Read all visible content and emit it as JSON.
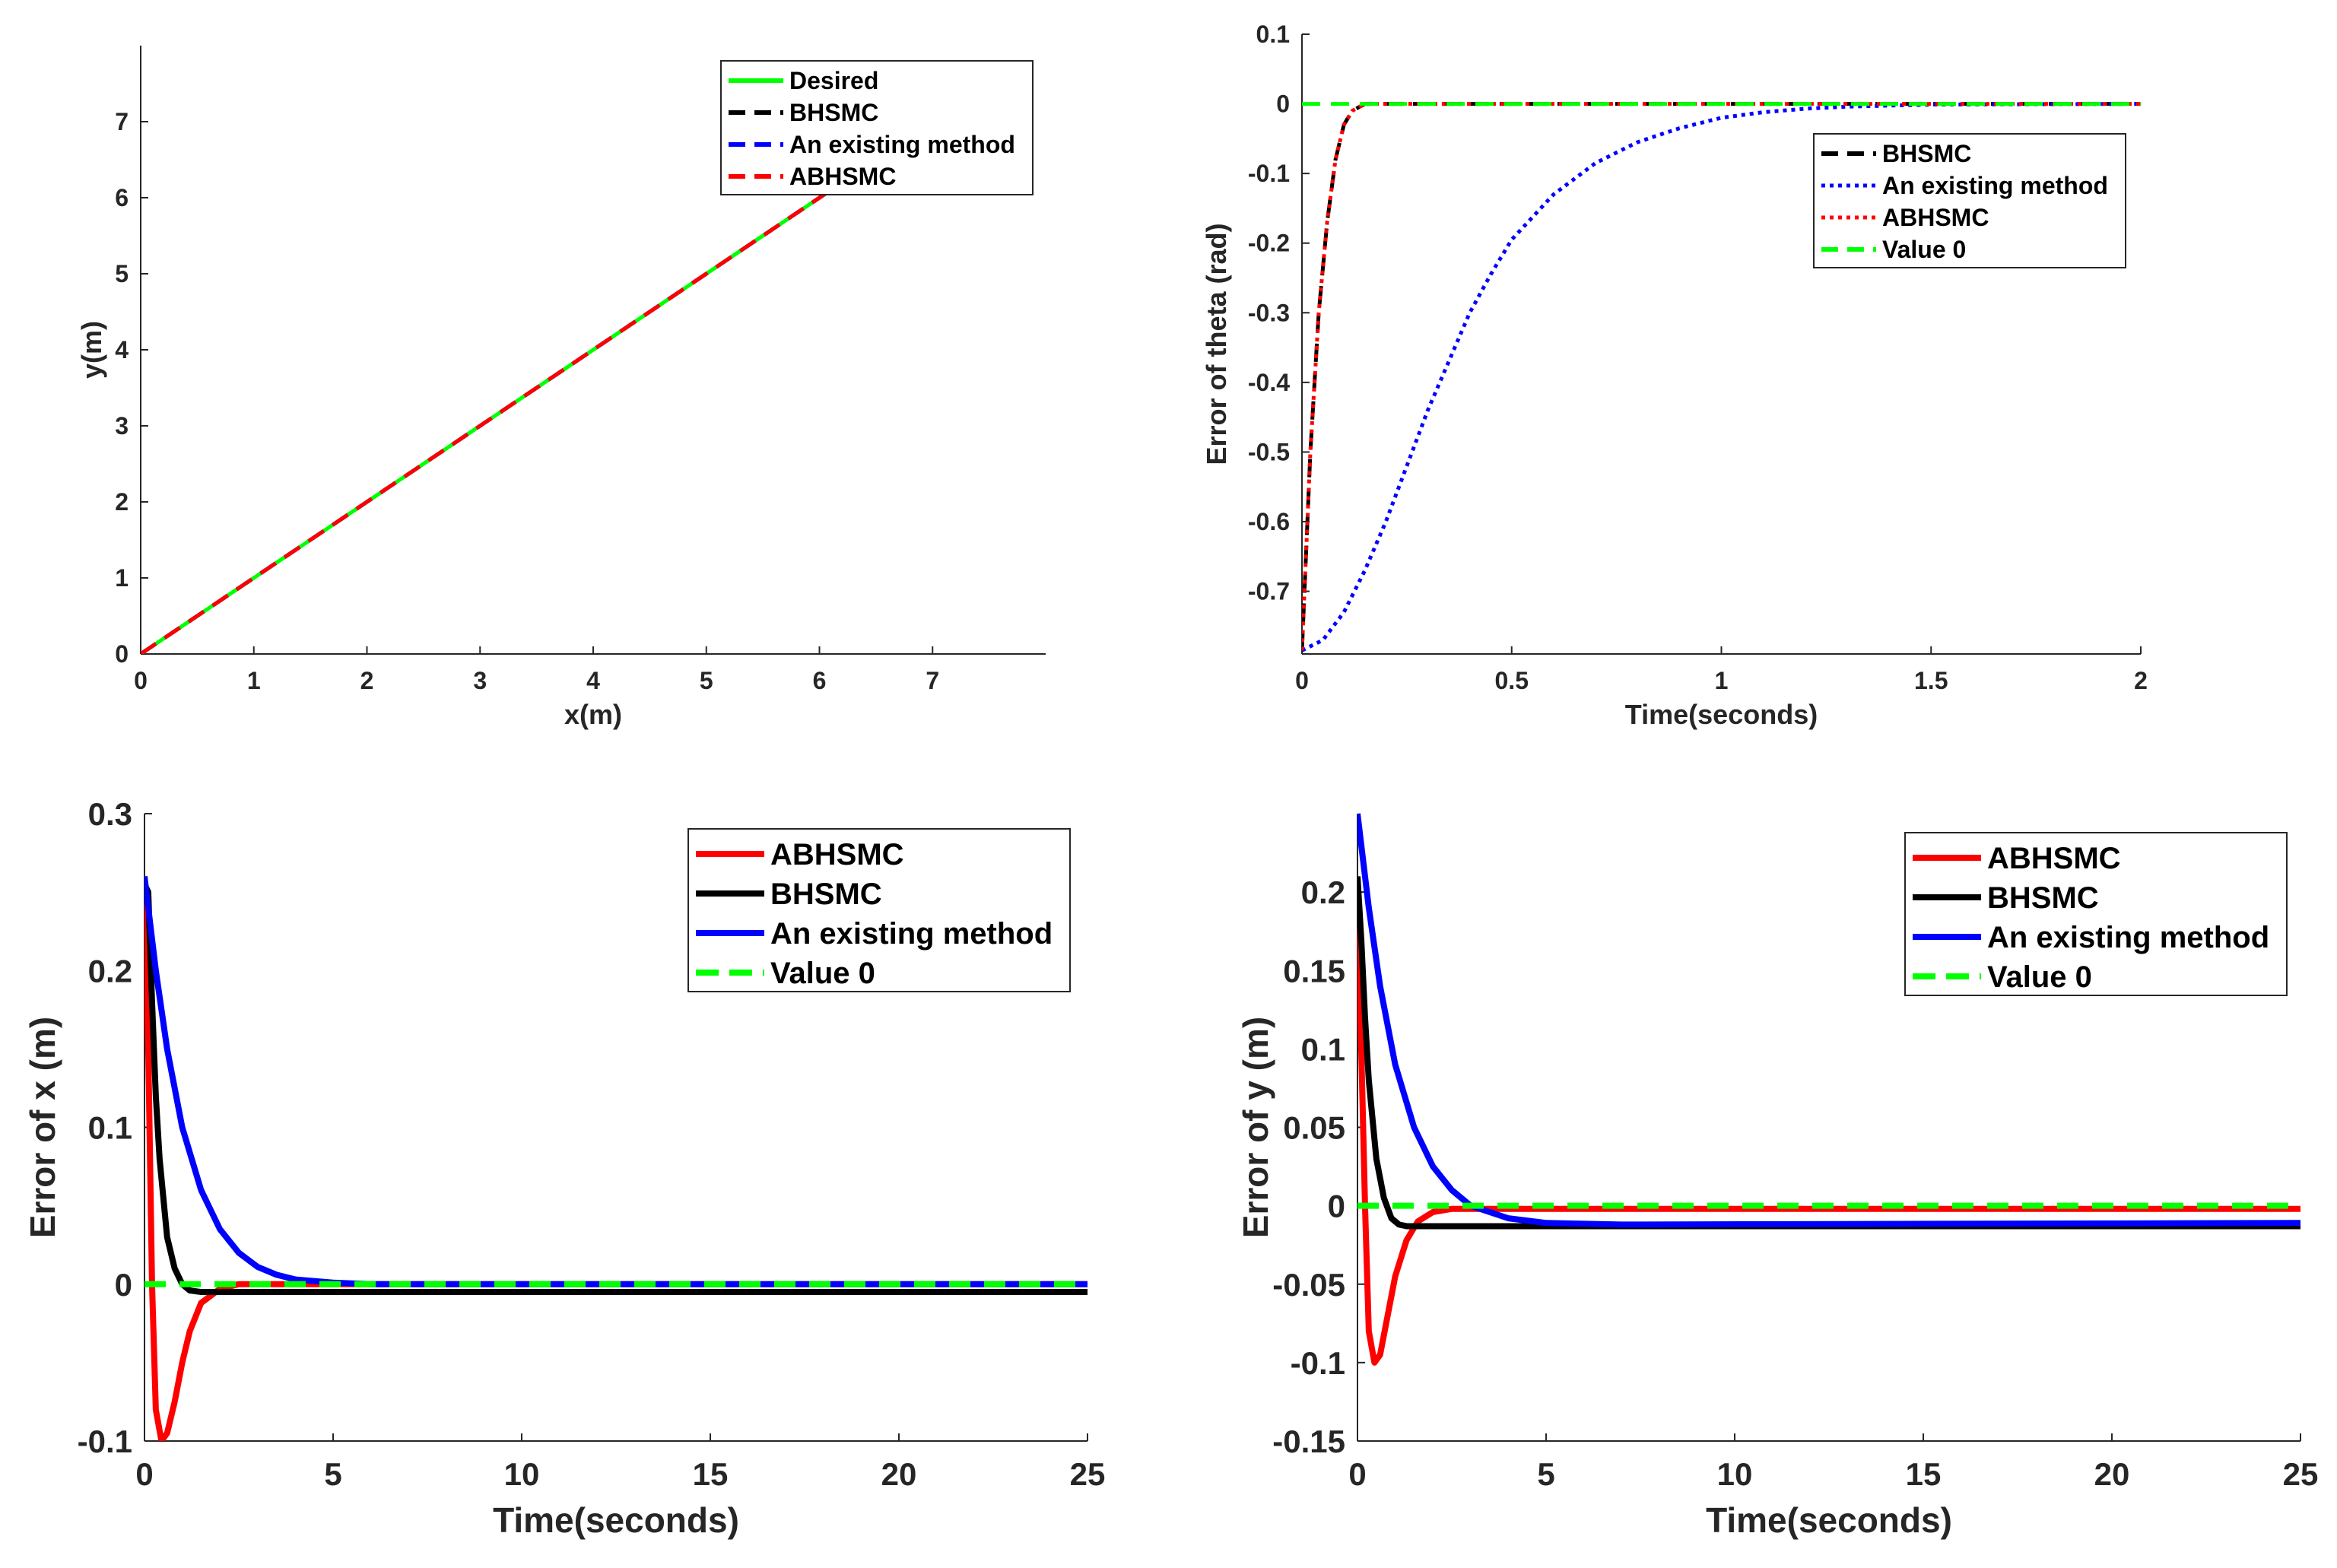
{
  "chart_data": [
    {
      "id": "traj",
      "type": "line",
      "xlabel": "x(m)",
      "ylabel": "y(m)",
      "xlim": [
        0,
        8
      ],
      "ylim": [
        0,
        8
      ],
      "xticks": [
        0,
        1,
        2,
        3,
        4,
        5,
        6,
        7
      ],
      "yticks": [
        0,
        1,
        2,
        3,
        4,
        5,
        6,
        7
      ],
      "legend_position": "top-right",
      "series": [
        {
          "name": "Desired",
          "color": "#00ff00",
          "style": "solid",
          "x": [
            0,
            6.3
          ],
          "y": [
            0,
            6.3
          ]
        },
        {
          "name": "BHSMC",
          "color": "#000000",
          "style": "dashed",
          "x": [
            0,
            6.3
          ],
          "y": [
            0,
            6.3
          ]
        },
        {
          "name": "An existing method",
          "color": "#0000ff",
          "style": "dashed",
          "x": [
            0,
            6.3
          ],
          "y": [
            0,
            6.3
          ]
        },
        {
          "name": "ABHSMC",
          "color": "#ff0000",
          "style": "dashed",
          "x": [
            0,
            6.3
          ],
          "y": [
            0,
            6.3
          ]
        }
      ]
    },
    {
      "id": "theta",
      "type": "line",
      "xlabel": "Time(seconds)",
      "ylabel": "Error of theta (rad)",
      "xlim": [
        0,
        2
      ],
      "ylim": [
        -0.79,
        0.1
      ],
      "xticks": [
        0,
        0.5,
        1,
        1.5,
        2
      ],
      "xtick_labels": [
        "0",
        "0.5",
        "1",
        "1.5",
        "2"
      ],
      "yticks": [
        0.1,
        0,
        -0.1,
        -0.2,
        -0.3,
        -0.4,
        -0.5,
        -0.6,
        -0.7
      ],
      "ytick_labels": [
        "0.1",
        "0",
        "-0.1",
        "-0.2",
        "-0.3",
        "-0.4",
        "-0.5",
        "-0.6",
        "-0.7"
      ],
      "legend_position": "top-right",
      "series": [
        {
          "name": "BHSMC",
          "color": "#000000",
          "style": "dashed",
          "x": [
            0,
            0.02,
            0.04,
            0.06,
            0.08,
            0.1,
            0.12,
            0.15,
            2
          ],
          "y": [
            -0.785,
            -0.5,
            -0.3,
            -0.17,
            -0.08,
            -0.03,
            -0.01,
            0,
            0
          ]
        },
        {
          "name": "An existing method",
          "color": "#0000ff",
          "style": "dotted",
          "x": [
            0,
            0.05,
            0.1,
            0.15,
            0.2,
            0.25,
            0.3,
            0.35,
            0.4,
            0.45,
            0.5,
            0.6,
            0.7,
            0.8,
            0.9,
            1.0,
            1.1,
            1.2,
            1.3,
            1.5,
            2
          ],
          "y": [
            -0.785,
            -0.77,
            -0.73,
            -0.67,
            -0.6,
            -0.52,
            -0.44,
            -0.37,
            -0.3,
            -0.245,
            -0.195,
            -0.13,
            -0.085,
            -0.055,
            -0.035,
            -0.02,
            -0.012,
            -0.007,
            -0.004,
            -0.001,
            0
          ]
        },
        {
          "name": "ABHSMC",
          "color": "#ff0000",
          "style": "dotted",
          "x": [
            0,
            0.02,
            0.04,
            0.06,
            0.08,
            0.1,
            0.12,
            0.15,
            2
          ],
          "y": [
            -0.785,
            -0.5,
            -0.3,
            -0.17,
            -0.08,
            -0.03,
            -0.01,
            0,
            0
          ]
        },
        {
          "name": "Value 0",
          "color": "#00ff00",
          "style": "dashed",
          "x": [
            0,
            2
          ],
          "y": [
            0,
            0
          ]
        }
      ]
    },
    {
      "id": "ex",
      "type": "line",
      "xlabel": "Time(seconds)",
      "ylabel": "Error of x (m)",
      "xlim": [
        0,
        25
      ],
      "ylim": [
        -0.1,
        0.3
      ],
      "xticks": [
        0,
        5,
        10,
        15,
        20,
        25
      ],
      "xtick_labels": [
        "0",
        "5",
        "10",
        "15",
        "20",
        "25"
      ],
      "yticks": [
        -0.1,
        0,
        0.1,
        0.2,
        0.3
      ],
      "ytick_labels": [
        "-0.1",
        "0",
        "0.1",
        "0.2",
        "0.3"
      ],
      "legend_position": "top-right",
      "series": [
        {
          "name": "ABHSMC",
          "color": "#ff0000",
          "style": "solid",
          "x": [
            0,
            0.1,
            0.2,
            0.3,
            0.45,
            0.6,
            0.8,
            1.0,
            1.2,
            1.5,
            2.0,
            2.5,
            3,
            25
          ],
          "y": [
            0.25,
            0.15,
            0.0,
            -0.08,
            -0.1,
            -0.095,
            -0.075,
            -0.05,
            -0.03,
            -0.012,
            -0.003,
            0,
            0,
            0
          ]
        },
        {
          "name": "BHSMC",
          "color": "#000000",
          "style": "solid",
          "x": [
            0,
            0.1,
            0.2,
            0.3,
            0.4,
            0.6,
            0.8,
            1.0,
            1.2,
            1.5,
            2,
            25
          ],
          "y": [
            0.255,
            0.25,
            0.18,
            0.12,
            0.08,
            0.03,
            0.01,
            0.0,
            -0.004,
            -0.005,
            -0.005,
            -0.005
          ]
        },
        {
          "name": "An existing method",
          "color": "#0000ff",
          "style": "solid",
          "x": [
            0,
            0.3,
            0.6,
            1.0,
            1.5,
            2.0,
            2.5,
            3.0,
            3.5,
            4.0,
            5.0,
            6.0,
            25
          ],
          "y": [
            0.26,
            0.2,
            0.15,
            0.1,
            0.06,
            0.035,
            0.02,
            0.011,
            0.006,
            0.003,
            0.001,
            0,
            0
          ]
        },
        {
          "name": "Value 0",
          "color": "#00ff00",
          "style": "dashed",
          "x": [
            0,
            25
          ],
          "y": [
            0,
            0
          ]
        }
      ]
    },
    {
      "id": "ey",
      "type": "line",
      "xlabel": "Time(seconds)",
      "ylabel": "Error of y (m)",
      "xlim": [
        0,
        25
      ],
      "ylim": [
        -0.15,
        0.25
      ],
      "xticks": [
        0,
        5,
        10,
        15,
        20,
        25
      ],
      "xtick_labels": [
        "0",
        "5",
        "10",
        "15",
        "20",
        "25"
      ],
      "yticks": [
        0.2,
        0.15,
        0.1,
        0.05,
        0,
        -0.05,
        -0.1,
        -0.15
      ],
      "ytick_labels": [
        "0.2",
        "0.15",
        "0.1",
        "0.05",
        "0",
        "-0.05",
        "-0.1",
        "-0.15"
      ],
      "legend_position": "top-right",
      "series": [
        {
          "name": "ABHSMC",
          "color": "#ff0000",
          "style": "solid",
          "x": [
            0,
            0.1,
            0.2,
            0.3,
            0.45,
            0.6,
            0.8,
            1.0,
            1.3,
            1.6,
            2.0,
            2.5,
            25
          ],
          "y": [
            0.2,
            0.1,
            0.0,
            -0.08,
            -0.1,
            -0.095,
            -0.07,
            -0.045,
            -0.022,
            -0.01,
            -0.004,
            -0.002,
            -0.002
          ]
        },
        {
          "name": "BHSMC",
          "color": "#000000",
          "style": "solid",
          "x": [
            0,
            0.1,
            0.2,
            0.3,
            0.5,
            0.7,
            0.9,
            1.1,
            1.3,
            2,
            25
          ],
          "y": [
            0.21,
            0.17,
            0.12,
            0.08,
            0.03,
            0.005,
            -0.008,
            -0.012,
            -0.013,
            -0.013,
            -0.013
          ]
        },
        {
          "name": "An existing method",
          "color": "#0000ff",
          "style": "solid",
          "x": [
            0,
            0.3,
            0.6,
            1.0,
            1.5,
            2.0,
            2.5,
            3.0,
            4.0,
            5.0,
            7.0,
            25
          ],
          "y": [
            0.25,
            0.19,
            0.14,
            0.09,
            0.05,
            0.025,
            0.01,
            0.0,
            -0.008,
            -0.011,
            -0.012,
            -0.011
          ]
        },
        {
          "name": "Value 0",
          "color": "#00ff00",
          "style": "dashed",
          "x": [
            0,
            25
          ],
          "y": [
            0,
            0
          ]
        }
      ]
    }
  ]
}
